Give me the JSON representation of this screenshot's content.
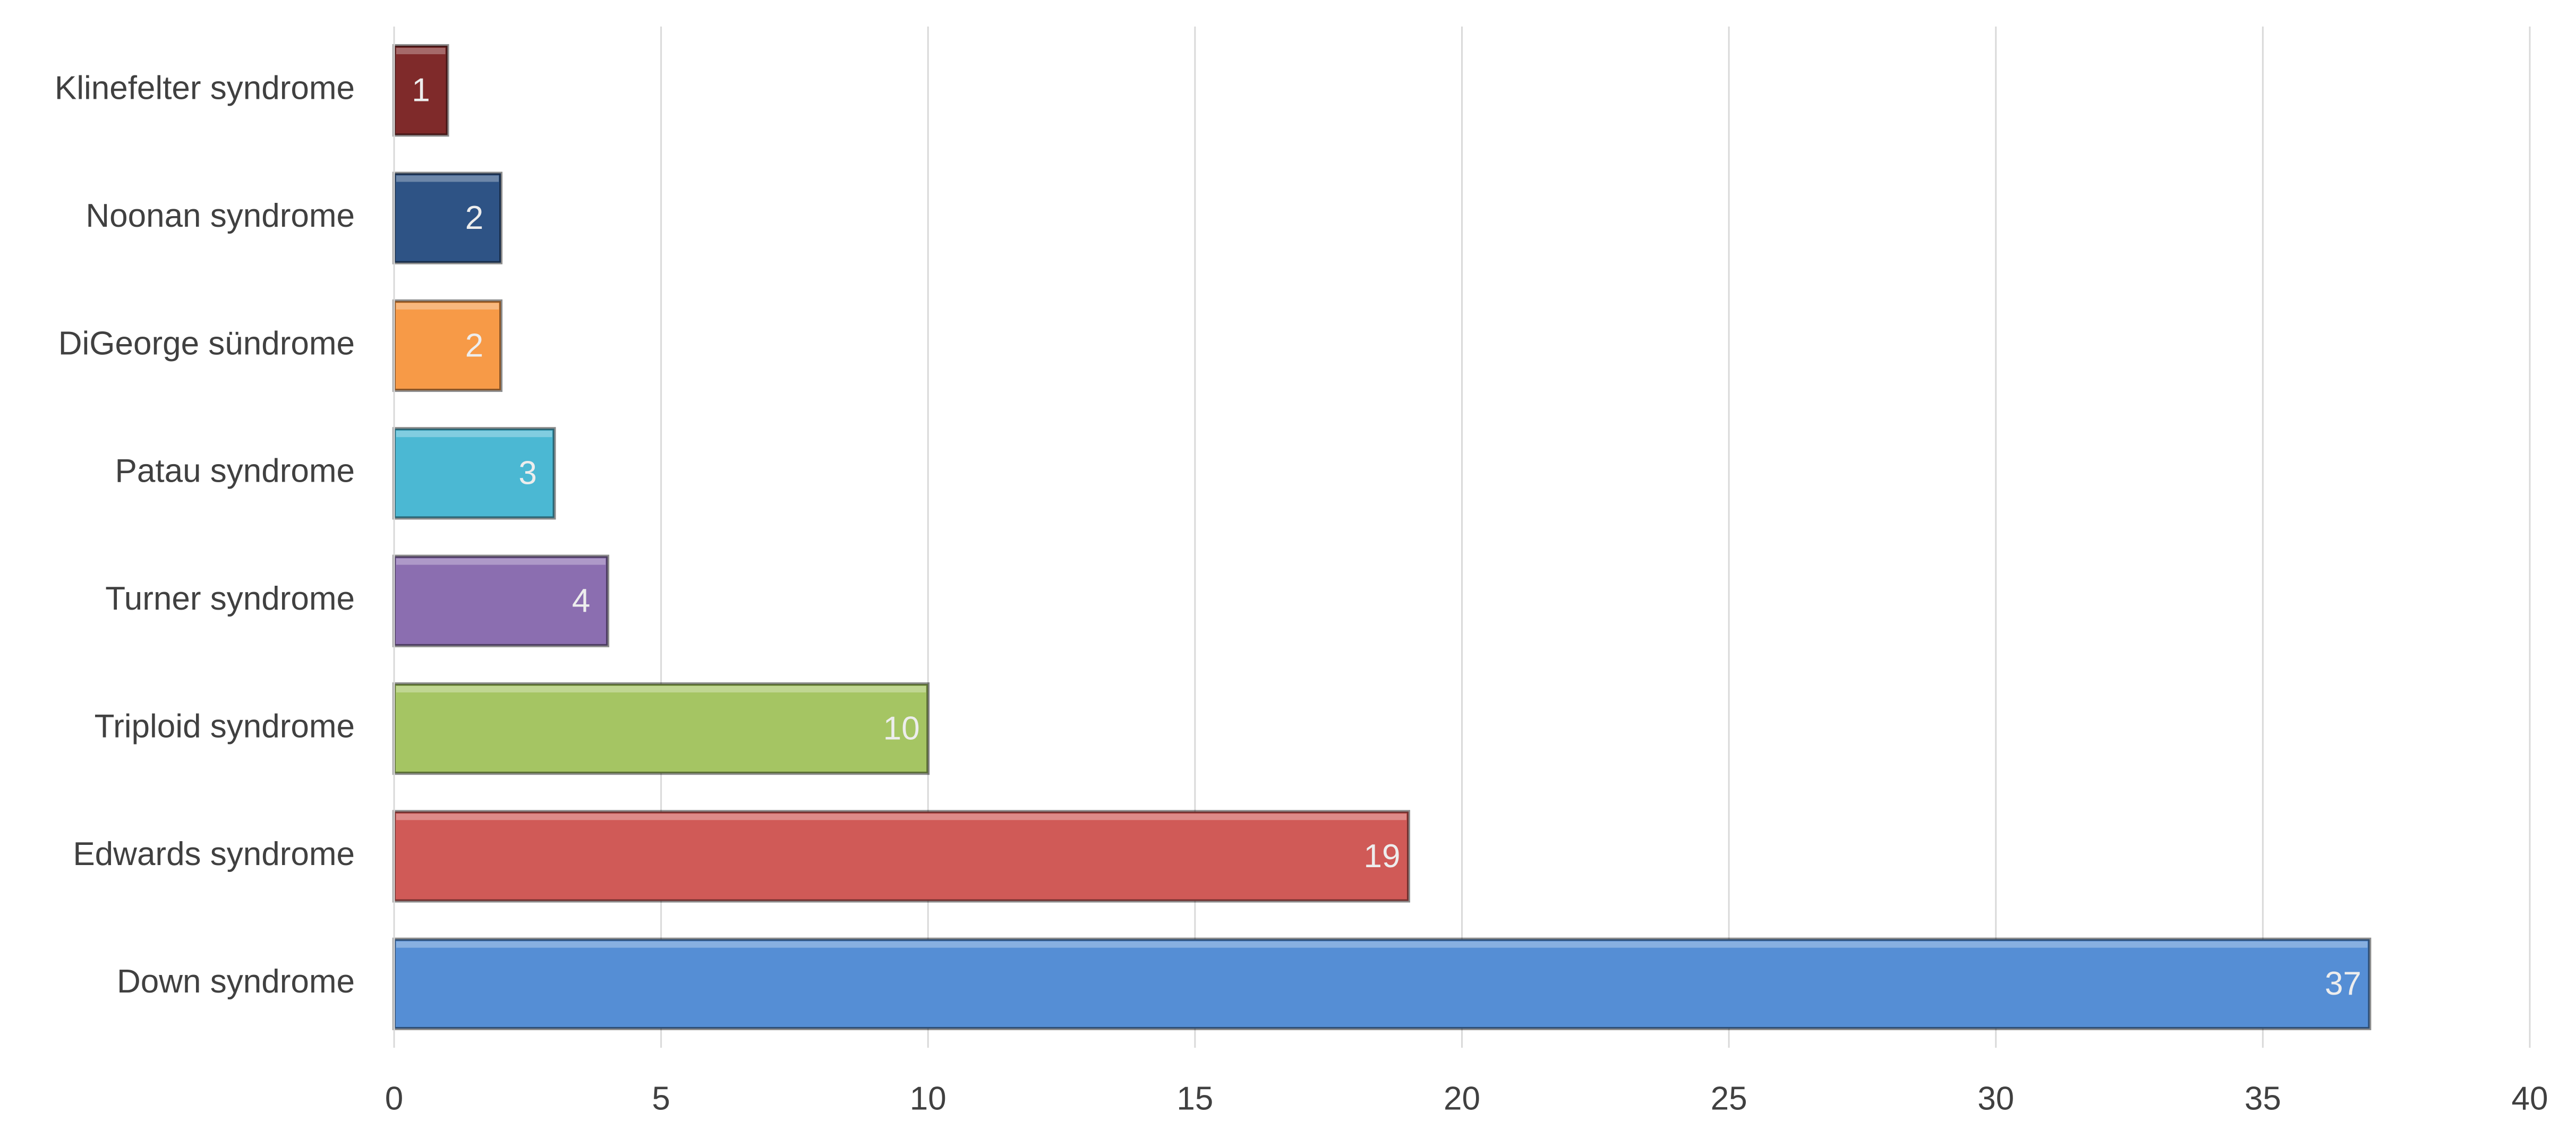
{
  "chart_data": {
    "type": "barh",
    "categories": [
      "Down syndrome",
      "Edwards syndrome",
      "Triploid syndrome",
      "Turner syndrome",
      "Patau syndrome",
      "DiGeorge sündrome",
      "Noonan syndrome",
      "Klinefelter syndrome"
    ],
    "values": [
      37,
      19,
      10,
      4,
      3,
      2,
      2,
      1
    ],
    "colors": [
      "#558ed5",
      "#d05a57",
      "#a5c563",
      "#8b6eb0",
      "#4bb8d3",
      "#f79a47",
      "#2e5385",
      "#7f2a2a"
    ],
    "xlim": [
      0,
      40
    ],
    "xticks": [
      0,
      5,
      10,
      15,
      20,
      25,
      30,
      35,
      40
    ],
    "grid": true
  }
}
